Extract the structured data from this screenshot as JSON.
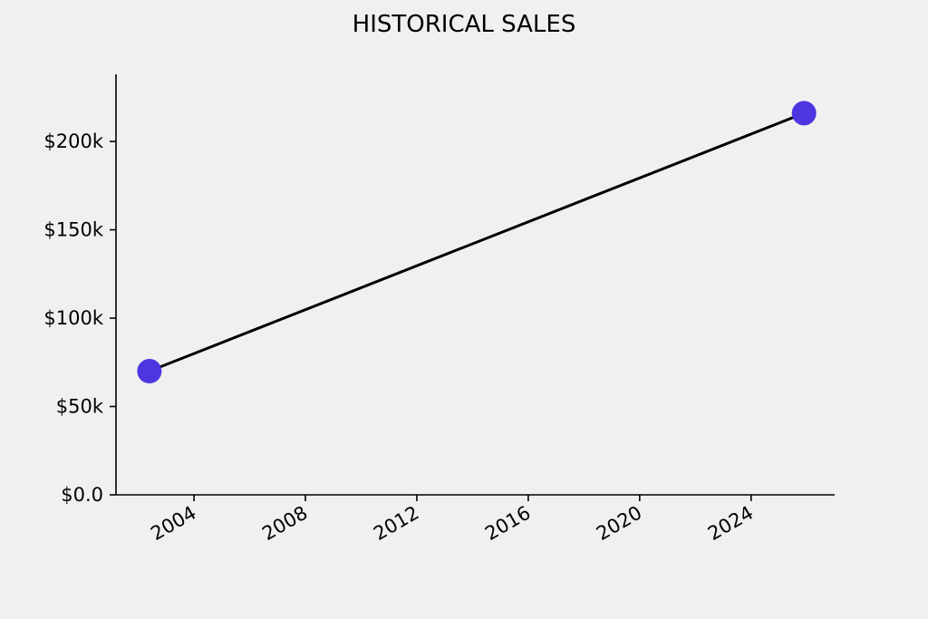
{
  "chart_data": {
    "type": "line",
    "title": "HISTORICAL SALES",
    "xlabel": "",
    "ylabel": "",
    "x_axis": {
      "kind": "year",
      "range": [
        2001.2,
        2027.0
      ],
      "ticks": [
        2004,
        2008,
        2012,
        2016,
        2020,
        2024
      ],
      "tick_labels": [
        "2004",
        "2008",
        "2012",
        "2016",
        "2020",
        "2024"
      ],
      "tick_label_rotation": "30deg"
    },
    "y_axis": {
      "range": [
        0,
        238000
      ],
      "ticks": [
        0,
        50000,
        100000,
        150000,
        200000
      ],
      "tick_labels": [
        "$0.0",
        "$50k",
        "$100k",
        "$150k",
        "$200k"
      ]
    },
    "grid": false,
    "legend": "none",
    "series": [
      {
        "x": [
          2002.4,
          2025.9
        ],
        "y": [
          70000,
          216000
        ],
        "line_color": "#000000",
        "marker_color": "#4b36e0"
      }
    ]
  }
}
